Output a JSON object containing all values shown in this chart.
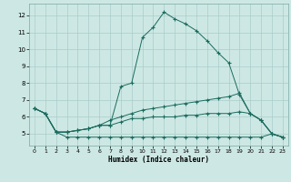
{
  "xlabel": "Humidex (Indice chaleur)",
  "xlim": [
    -0.5,
    23.5
  ],
  "ylim": [
    4.3,
    12.7
  ],
  "yticks": [
    5,
    6,
    7,
    8,
    9,
    10,
    11,
    12
  ],
  "xticks": [
    0,
    1,
    2,
    3,
    4,
    5,
    6,
    7,
    8,
    9,
    10,
    11,
    12,
    13,
    14,
    15,
    16,
    17,
    18,
    19,
    20,
    21,
    22,
    23
  ],
  "bg_color": "#cde8e4",
  "grid_color": "#aaccca",
  "line_color": "#1a6b5e",
  "line1_x": [
    0,
    1,
    2,
    3,
    4,
    5,
    6,
    7,
    8,
    9,
    10,
    11,
    12,
    13,
    14,
    15,
    16,
    17,
    18,
    19,
    20,
    21,
    22,
    23
  ],
  "line1_y": [
    6.5,
    6.2,
    5.1,
    4.8,
    4.8,
    4.8,
    4.8,
    4.8,
    4.8,
    4.8,
    4.8,
    4.8,
    4.8,
    4.8,
    4.8,
    4.8,
    4.8,
    4.8,
    4.8,
    4.8,
    4.8,
    4.8,
    5.0,
    4.8
  ],
  "line2_x": [
    0,
    1,
    2,
    3,
    4,
    5,
    6,
    7,
    8,
    9,
    10,
    11,
    12,
    13,
    14,
    15,
    16,
    17,
    18,
    19,
    20,
    21,
    22,
    23
  ],
  "line2_y": [
    6.5,
    6.2,
    5.1,
    5.1,
    5.2,
    5.3,
    5.5,
    5.5,
    5.7,
    5.9,
    5.9,
    6.0,
    6.0,
    6.0,
    6.1,
    6.1,
    6.2,
    6.2,
    6.2,
    6.3,
    6.2,
    5.8,
    5.0,
    4.8
  ],
  "line3_x": [
    0,
    1,
    2,
    3,
    4,
    5,
    6,
    7,
    8,
    9,
    10,
    11,
    12,
    13,
    14,
    15,
    16,
    17,
    18,
    19,
    20,
    21,
    22,
    23
  ],
  "line3_y": [
    6.5,
    6.2,
    5.1,
    5.1,
    5.2,
    5.3,
    5.5,
    5.5,
    7.8,
    8.0,
    10.7,
    11.3,
    12.2,
    11.8,
    11.5,
    11.1,
    10.5,
    9.8,
    9.2,
    7.3,
    6.2,
    5.8,
    5.0,
    4.8
  ],
  "line4_x": [
    0,
    1,
    2,
    3,
    4,
    5,
    6,
    7,
    8,
    9,
    10,
    11,
    12,
    13,
    14,
    15,
    16,
    17,
    18,
    19,
    20,
    21,
    22,
    23
  ],
  "line4_y": [
    6.5,
    6.2,
    5.1,
    5.1,
    5.2,
    5.3,
    5.5,
    5.8,
    6.0,
    6.2,
    6.4,
    6.5,
    6.6,
    6.7,
    6.8,
    6.9,
    7.0,
    7.1,
    7.2,
    7.4,
    6.2,
    5.8,
    5.0,
    4.8
  ]
}
